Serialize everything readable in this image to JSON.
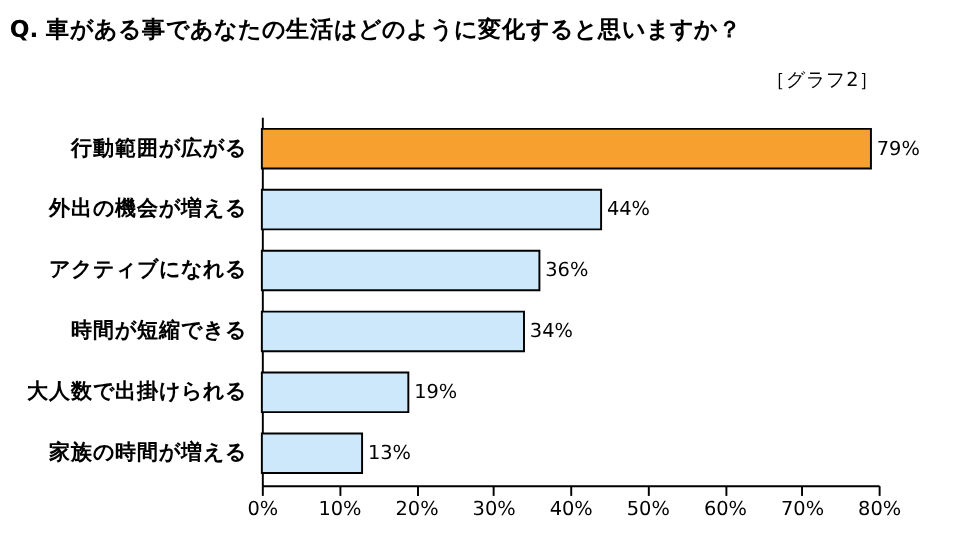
{
  "chart_data": {
    "type": "bar",
    "orientation": "horizontal",
    "title": "Q. 車がある事であなたの生活はどのように変化すると思いますか？",
    "annotations": [
      "［グラフ2］"
    ],
    "categories": [
      "行動範囲が広がる",
      "外出の機会が増える",
      "アクティブになれる",
      "時間が短縮できる",
      "大人数で出掛けられる",
      "家族の時間が増える"
    ],
    "values": [
      79,
      44,
      36,
      34,
      19,
      13
    ],
    "value_labels": [
      "79%",
      "44%",
      "36%",
      "34%",
      "19%",
      "13%"
    ],
    "colors": [
      "#f7a030",
      "#cce8fa",
      "#cce8fa",
      "#cce8fa",
      "#cce8fa",
      "#cce8fa"
    ],
    "xlim": [
      0,
      80
    ],
    "xticks": [
      {
        "value": 0,
        "label": "0%"
      },
      {
        "value": 10,
        "label": "10%"
      },
      {
        "value": 20,
        "label": "20%"
      },
      {
        "value": 30,
        "label": "30%"
      },
      {
        "value": 40,
        "label": "40%"
      },
      {
        "value": 50,
        "label": "50%"
      },
      {
        "value": 60,
        "label": "60%"
      },
      {
        "value": 70,
        "label": "70%"
      },
      {
        "value": 80,
        "label": "80%"
      }
    ],
    "grid": false
  }
}
